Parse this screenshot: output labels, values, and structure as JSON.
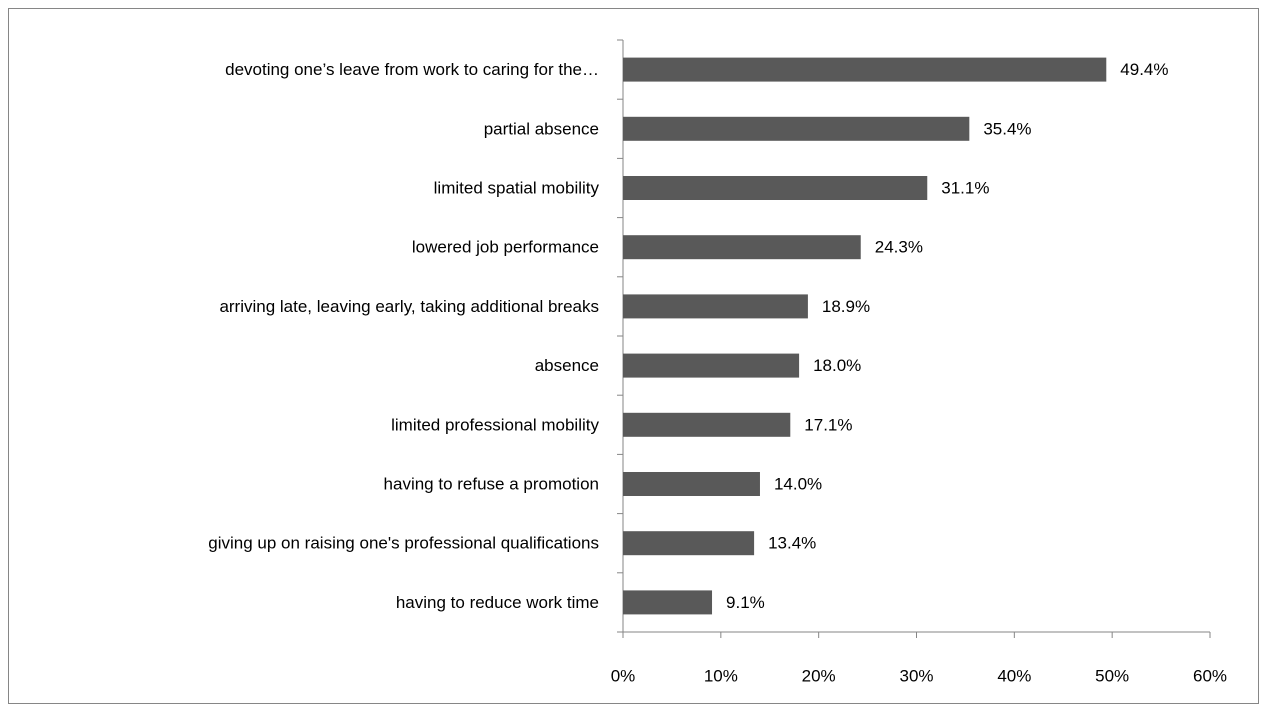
{
  "chart_data": {
    "type": "bar",
    "orientation": "horizontal",
    "categories": [
      "devoting one’s leave from work to caring for the…",
      "partial absence",
      "limited spatial mobility",
      "lowered job performance",
      "arriving late, leaving early, taking additional breaks",
      "absence",
      "limited professional mobility",
      "having to refuse a promotion",
      "giving up on raising one's professional qualifications",
      "having to reduce work time"
    ],
    "values": [
      49.4,
      35.4,
      31.1,
      24.3,
      18.9,
      18.0,
      17.1,
      14.0,
      13.4,
      9.1
    ],
    "value_labels": [
      "49.4%",
      "35.4%",
      "31.1%",
      "24.3%",
      "18.9%",
      "18.0%",
      "17.1%",
      "14.0%",
      "13.4%",
      "9.1%"
    ],
    "color": "#595959",
    "xlim": [
      0,
      60
    ],
    "xticks": [
      {
        "value": 0,
        "label": "0%"
      },
      {
        "value": 10,
        "label": "10%"
      },
      {
        "value": 20,
        "label": "20%"
      },
      {
        "value": 30,
        "label": "30%"
      },
      {
        "value": 40,
        "label": "40%"
      },
      {
        "value": 50,
        "label": "50%"
      },
      {
        "value": 60,
        "label": "60%"
      }
    ],
    "grid": false
  }
}
